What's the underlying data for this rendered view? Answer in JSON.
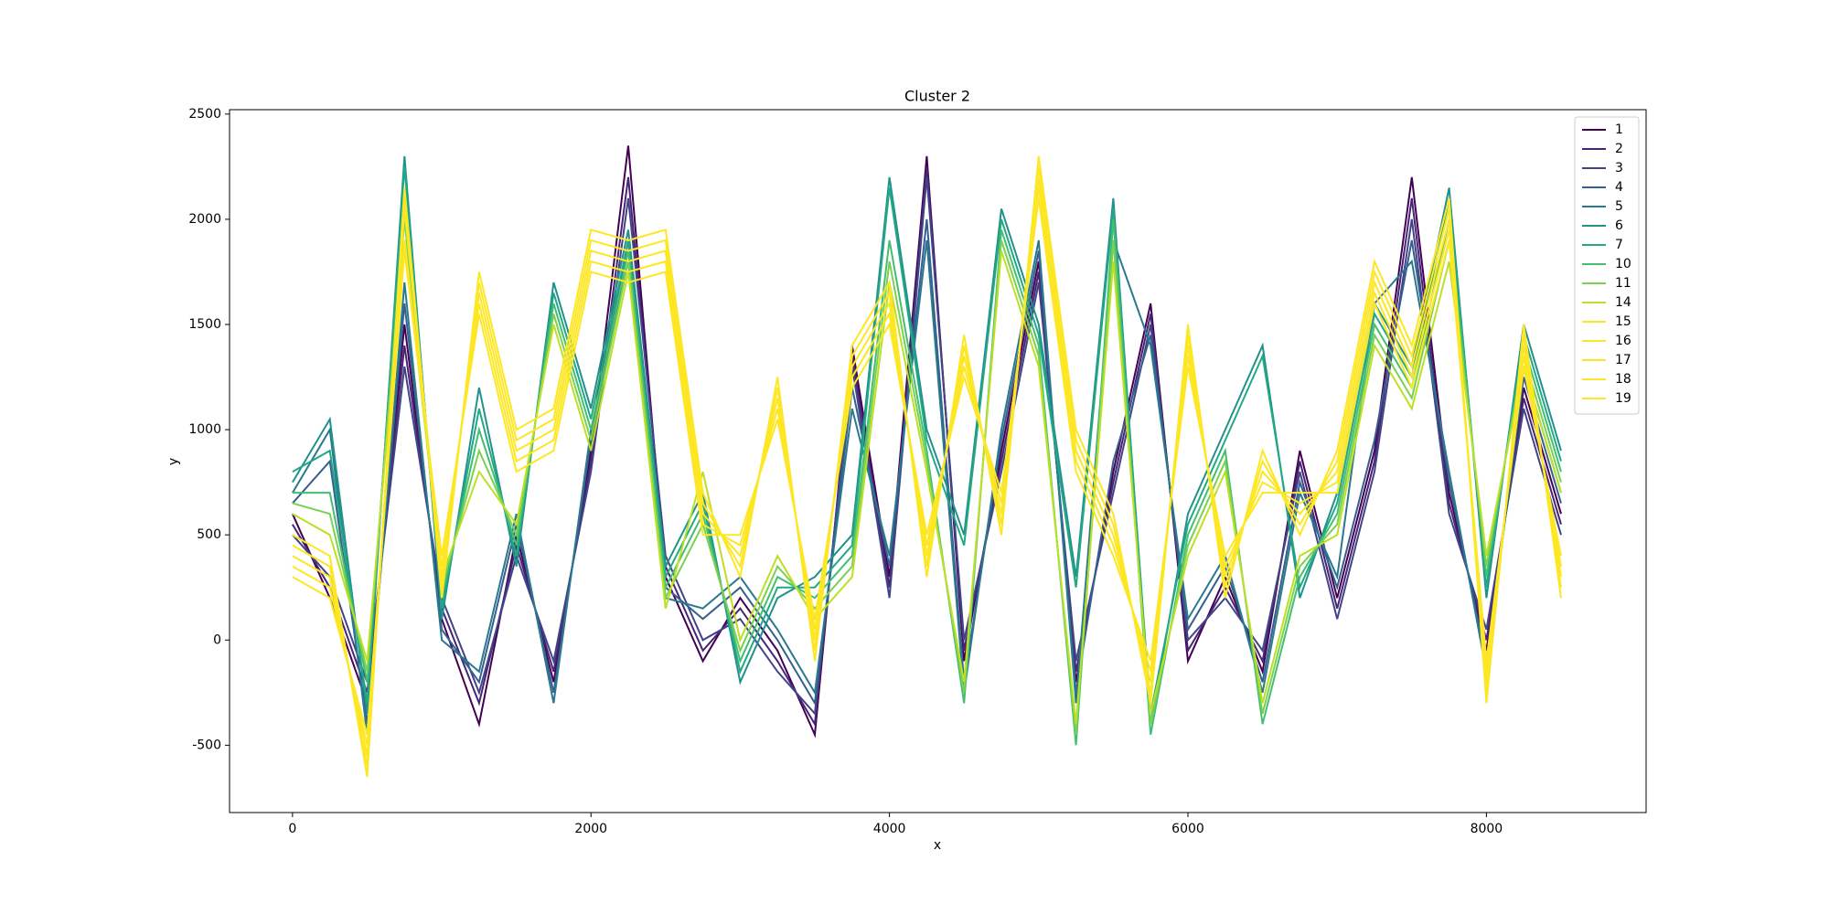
{
  "chart_data": {
    "type": "line",
    "title": "Cluster 2",
    "xlabel": "x",
    "ylabel": "y",
    "xlim": [
      -422,
      9070
    ],
    "ylim": [
      -820,
      2521
    ],
    "xticks": [
      0,
      2000,
      4000,
      6000,
      8000
    ],
    "yticks": [
      -500,
      0,
      500,
      1000,
      1500,
      2000,
      2500
    ],
    "legend": "upper right",
    "grid": false,
    "x": [
      0,
      250,
      500,
      750,
      1000,
      1250,
      1500,
      1750,
      2000,
      2250,
      2500,
      2750,
      3000,
      3250,
      3500,
      3750,
      4000,
      4250,
      4500,
      4750,
      5000,
      5250,
      5500,
      5750,
      6000,
      6250,
      6500,
      6750,
      7000,
      7250,
      7500,
      7750,
      8000,
      8250,
      8500
    ],
    "series": [
      {
        "name": "1",
        "color": "#440154",
        "values": [
          600,
          200,
          -300,
          1500,
          100,
          -400,
          500,
          -200,
          900,
          2350,
          300,
          -100,
          200,
          -50,
          -450,
          1400,
          300,
          2300,
          -100,
          900,
          1800,
          -200,
          800,
          1600,
          -100,
          300,
          -150,
          900,
          200,
          900,
          2200,
          700,
          -50,
          1200,
          600
        ]
      },
      {
        "name": "2",
        "color": "#482475",
        "values": [
          550,
          250,
          -250,
          1400,
          150,
          -300,
          450,
          -150,
          850,
          2200,
          350,
          -50,
          150,
          -100,
          -400,
          1350,
          250,
          2250,
          -50,
          850,
          1750,
          -150,
          750,
          1550,
          -50,
          250,
          -100,
          850,
          150,
          850,
          2100,
          650,
          0,
          1150,
          550
        ]
      },
      {
        "name": "3",
        "color": "#414487",
        "values": [
          500,
          300,
          -200,
          1300,
          200,
          -250,
          400,
          -100,
          800,
          2100,
          400,
          0,
          100,
          -150,
          -350,
          1300,
          200,
          2200,
          0,
          800,
          1700,
          -100,
          700,
          1500,
          0,
          200,
          -50,
          800,
          100,
          800,
          2000,
          600,
          50,
          1100,
          500
        ]
      },
      {
        "name": "4",
        "color": "#355f8d",
        "values": [
          650,
          850,
          -400,
          1600,
          50,
          -200,
          550,
          -250,
          950,
          1900,
          250,
          100,
          250,
          0,
          -300,
          1200,
          350,
          2000,
          -200,
          950,
          1850,
          -250,
          850,
          1450,
          50,
          350,
          -200,
          750,
          250,
          950,
          1900,
          750,
          -100,
          1250,
          650
        ]
      },
      {
        "name": "5",
        "color": "#2a788e",
        "values": [
          700,
          1000,
          -450,
          1700,
          0,
          -150,
          600,
          -300,
          1000,
          1800,
          200,
          150,
          300,
          50,
          -250,
          1100,
          400,
          1900,
          -250,
          1000,
          1900,
          -300,
          1900,
          1400,
          100,
          400,
          -250,
          700,
          300,
          1600,
          1800,
          800,
          -150,
          1300,
          700
        ]
      },
      {
        "name": "6",
        "color": "#21918c",
        "values": [
          750,
          1050,
          -350,
          2300,
          100,
          1200,
          350,
          1700,
          1100,
          1950,
          350,
          700,
          -200,
          200,
          300,
          500,
          2200,
          1000,
          500,
          2050,
          1500,
          300,
          2100,
          -400,
          600,
          1000,
          1400,
          200,
          700,
          1600,
          1300,
          2150,
          200,
          1500,
          900
        ]
      },
      {
        "name": "7",
        "color": "#22a884",
        "values": [
          800,
          900,
          -300,
          2250,
          150,
          1100,
          400,
          1650,
          1050,
          1900,
          300,
          650,
          -150,
          250,
          250,
          450,
          2150,
          950,
          450,
          2000,
          1450,
          250,
          2050,
          -350,
          550,
          950,
          1350,
          250,
          650,
          1550,
          1250,
          2100,
          250,
          1450,
          850
        ]
      },
      {
        "name": "10",
        "color": "#44bf70",
        "values": [
          700,
          700,
          -200,
          2100,
          200,
          1000,
          450,
          1600,
          1000,
          1850,
          250,
          600,
          -100,
          300,
          200,
          400,
          1900,
          900,
          -300,
          1950,
          1400,
          -500,
          2000,
          -450,
          500,
          900,
          -400,
          300,
          600,
          1500,
          1200,
          2000,
          300,
          1400,
          800
        ]
      },
      {
        "name": "11",
        "color": "#7ad151",
        "values": [
          650,
          600,
          -150,
          2000,
          250,
          900,
          500,
          1550,
          950,
          1800,
          200,
          550,
          -50,
          350,
          150,
          350,
          1800,
          850,
          -250,
          1900,
          1350,
          -450,
          1900,
          -400,
          450,
          850,
          -350,
          350,
          550,
          1450,
          1150,
          1900,
          350,
          1350,
          750
        ]
      },
      {
        "name": "14",
        "color": "#bddf26",
        "values": [
          600,
          500,
          -100,
          1900,
          300,
          800,
          550,
          1500,
          900,
          1750,
          150,
          800,
          0,
          400,
          100,
          300,
          1700,
          800,
          -200,
          1850,
          1300,
          -400,
          1800,
          -350,
          400,
          800,
          -300,
          400,
          500,
          1400,
          1100,
          1800,
          400,
          1300,
          700
        ]
      },
      {
        "name": "15",
        "color": "#fde725",
        "values": [
          500,
          400,
          -650,
          2150,
          200,
          1750,
          1000,
          1100,
          1950,
          1900,
          1950,
          700,
          300,
          1250,
          -100,
          1400,
          1700,
          300,
          1450,
          500,
          2300,
          1000,
          600,
          -300,
          1500,
          200,
          900,
          500,
          900,
          1800,
          1400,
          2100,
          -300,
          1500,
          200
        ]
      },
      {
        "name": "16",
        "color": "#fde725",
        "values": [
          450,
          350,
          -600,
          2100,
          250,
          1700,
          950,
          1050,
          1900,
          1850,
          1900,
          650,
          350,
          1200,
          -50,
          1350,
          1650,
          350,
          1400,
          550,
          2250,
          950,
          550,
          -250,
          1450,
          250,
          850,
          550,
          850,
          1750,
          1350,
          2050,
          -250,
          1450,
          250
        ]
      },
      {
        "name": "17",
        "color": "#fde725",
        "values": [
          400,
          300,
          -550,
          2050,
          300,
          1650,
          900,
          1000,
          1850,
          1800,
          1850,
          600,
          400,
          1150,
          0,
          1300,
          1600,
          400,
          1350,
          600,
          2200,
          900,
          500,
          -200,
          1400,
          300,
          800,
          600,
          800,
          1700,
          1300,
          2000,
          -200,
          1400,
          300
        ]
      },
      {
        "name": "18",
        "color": "#fde725",
        "values": [
          350,
          250,
          -500,
          1900,
          350,
          1600,
          850,
          950,
          1800,
          1750,
          1800,
          550,
          450,
          1100,
          50,
          1250,
          1550,
          450,
          1300,
          650,
          2150,
          850,
          450,
          -150,
          1350,
          350,
          750,
          650,
          750,
          1650,
          1250,
          1950,
          -150,
          1350,
          350
        ]
      },
      {
        "name": "19",
        "color": "#fde725",
        "values": [
          300,
          200,
          -450,
          1850,
          400,
          1550,
          800,
          900,
          1750,
          1700,
          1750,
          500,
          500,
          1050,
          100,
          1200,
          1500,
          500,
          1250,
          700,
          2100,
          800,
          400,
          -100,
          1300,
          400,
          700,
          700,
          700,
          1600,
          1200,
          1900,
          -100,
          1300,
          400
        ]
      }
    ]
  }
}
